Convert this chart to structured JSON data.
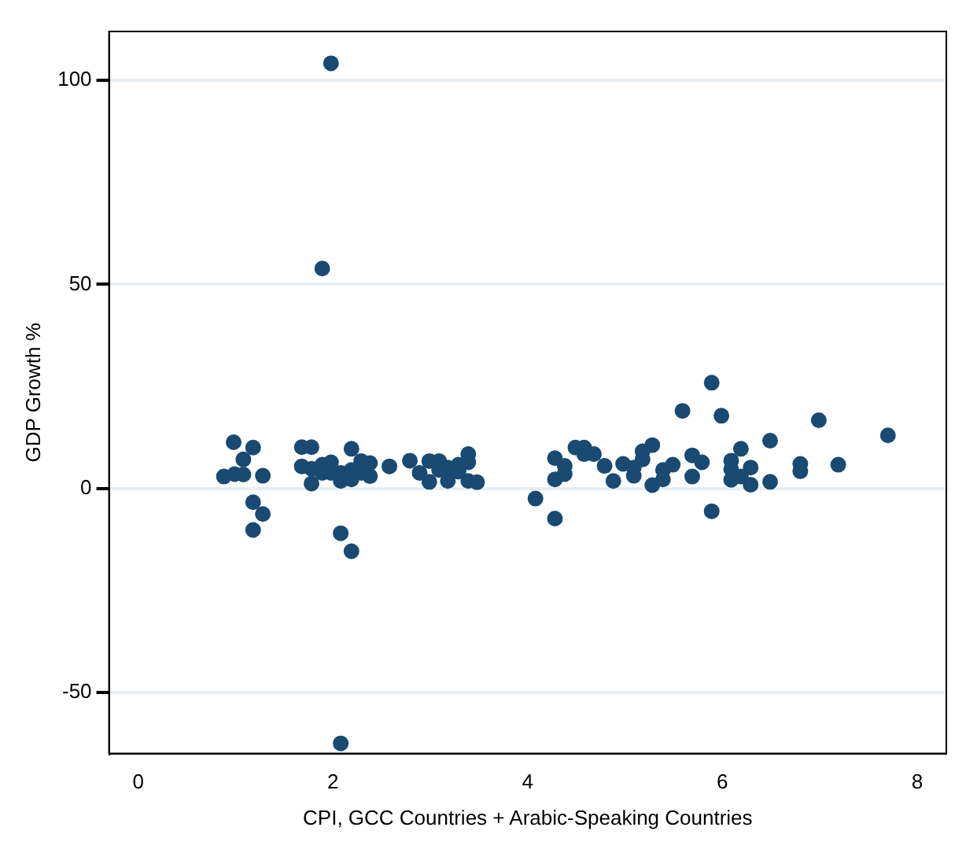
{
  "chart_data": {
    "type": "scatter",
    "xlabel": "CPI, GCC Countries + Arabic-Speaking Countries",
    "ylabel": "GDP Growth %",
    "xlim": [
      -0.3,
      8.3
    ],
    "xticks": [
      0,
      2,
      4,
      6,
      8
    ],
    "ylim": [
      -65,
      112
    ],
    "yticks": [
      -50,
      0,
      50,
      100
    ],
    "grid": "y",
    "marker": "circle",
    "legend": false,
    "series": [
      {
        "color": "#1a4a72",
        "x": [
          0.88,
          0.98,
          0.99,
          1.08,
          1.08,
          1.18,
          1.28,
          1.18,
          1.28,
          1.18,
          1.68,
          1.78,
          1.68,
          1.78,
          1.78,
          1.89,
          1.98,
          1.89,
          1.98,
          2.08,
          2.08,
          2.19,
          2.19,
          2.19,
          2.29,
          2.29,
          2.38,
          2.38,
          2.08,
          2.19,
          2.58,
          2.79,
          2.89,
          2.99,
          3.09,
          2.99,
          3.09,
          3.18,
          3.18,
          3.29,
          3.39,
          3.39,
          3.39,
          3.48,
          3.29,
          4.08,
          4.28,
          4.28,
          4.28,
          4.38,
          4.38,
          4.49,
          4.58,
          4.58,
          4.68,
          4.79,
          4.88,
          4.98,
          5.09,
          5.09,
          5.18,
          5.18,
          5.28,
          5.28,
          5.39,
          5.39,
          5.49,
          5.59,
          5.69,
          5.69,
          5.79,
          5.89,
          5.89,
          5.99,
          6.09,
          6.09,
          6.09,
          6.19,
          6.19,
          6.29,
          6.29,
          6.49,
          6.49,
          6.8,
          6.8,
          6.99,
          7.19,
          7.7,
          1.98,
          1.89,
          2.08
        ],
        "values": [
          2.9,
          11.3,
          3.5,
          7.1,
          3.4,
          10,
          3.1,
          -3.4,
          -6.3,
          -10.2,
          10.1,
          10.1,
          5.4,
          1.2,
          4.8,
          5.8,
          6.4,
          3.8,
          3.8,
          1.8,
          3.8,
          9.7,
          2.2,
          4.5,
          6.7,
          3.8,
          6.2,
          3,
          -11,
          -15.4,
          5.4,
          6.8,
          3.8,
          6.7,
          6.7,
          1.6,
          4.5,
          5.1,
          1.8,
          5.8,
          8.4,
          6.4,
          1.8,
          1.5,
          4.1,
          -2.5,
          -7.4,
          7.4,
          2.2,
          5.5,
          3.5,
          10,
          10,
          8.4,
          8.4,
          5.5,
          1.8,
          6,
          5.1,
          3.1,
          9.1,
          7.1,
          10.6,
          0.8,
          4.5,
          2.2,
          5.8,
          19,
          8.1,
          2.9,
          6.4,
          25.9,
          -5.6,
          17.8,
          6.8,
          4.7,
          2.1,
          9.7,
          2.9,
          5.1,
          0.9,
          11.7,
          1.6,
          6,
          4.2,
          16.7,
          5.8,
          13,
          104.2,
          53.9,
          -62.5
        ]
      }
    ]
  }
}
